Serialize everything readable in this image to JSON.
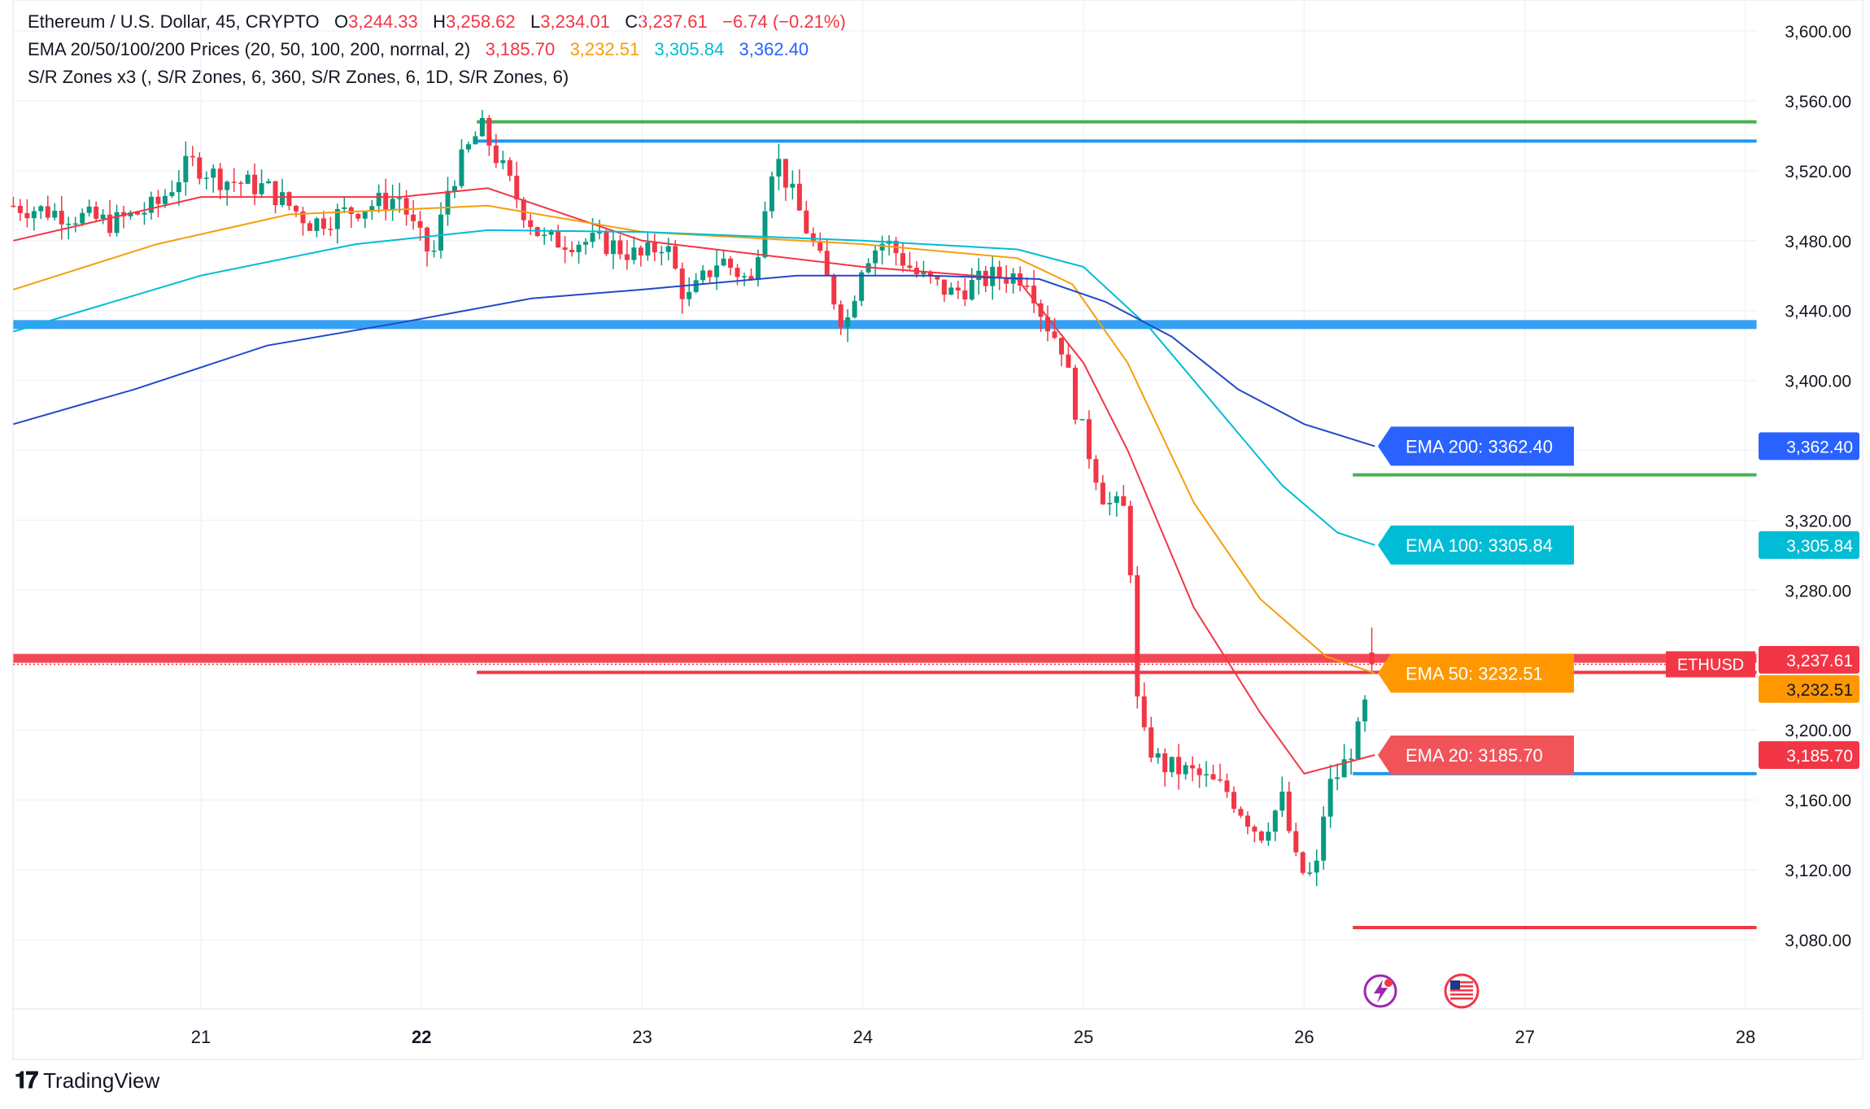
{
  "header": {
    "symbol": "Ethereum / U.S. Dollar, 45, CRYPTO",
    "open_label": "O",
    "open": "3,244.33",
    "high_label": "H",
    "high": "3,258.62",
    "low_label": "L",
    "low": "3,234.01",
    "close_label": "C",
    "close": "3,237.61",
    "change": "−6.74 (−0.21%)",
    "ema_title": "EMA 20/50/100/200 Prices (20, 50, 100, 200, normal, 2)",
    "ema20": "3,185.70",
    "ema50": "3,232.51",
    "ema100": "3,305.84",
    "ema200": "3,362.40",
    "sr_title": "S/R Zones x3 (, S/R Zones, 6, 360, S/R Zones, 6, 1D, S/R Zones, 6)"
  },
  "brand": "TradingView",
  "colors": {
    "up": "#089981",
    "down": "#f23645",
    "ema20": "#f23645",
    "ema50": "#f59e0b",
    "ema100": "#00bcd4",
    "ema200": "#2448c7",
    "sr_green": "#4caf50",
    "sr_blue": "#2196f3",
    "sr_red": "#f23645"
  },
  "chart_data": {
    "type": "candlestick",
    "x_ticks": [
      "21",
      "22",
      "23",
      "24",
      "25",
      "26",
      "27",
      "28"
    ],
    "y_ticks": [
      "3,080.00",
      "3,120.00",
      "3,160.00",
      "3,200.00",
      "3,240.00",
      "3,280.00",
      "3,320.00",
      "3,360.00",
      "3,400.00",
      "3,440.00",
      "3,480.00",
      "3,520.00",
      "3,560.00",
      "3,600.00"
    ],
    "ylim": [
      3058,
      3612
    ],
    "xlim": [
      20.15,
      28.05
    ],
    "ohlc_keypoints": [
      [
        20.15,
        3500
      ],
      [
        20.4,
        3495
      ],
      [
        20.6,
        3490
      ],
      [
        20.8,
        3500
      ],
      [
        20.95,
        3525
      ],
      [
        21.1,
        3515
      ],
      [
        21.3,
        3510
      ],
      [
        21.5,
        3490
      ],
      [
        21.7,
        3498
      ],
      [
        21.9,
        3505
      ],
      [
        21.97,
        3485
      ],
      [
        22.05,
        3470
      ],
      [
        22.12,
        3510
      ],
      [
        22.2,
        3530
      ],
      [
        22.27,
        3545
      ],
      [
        22.35,
        3525
      ],
      [
        22.45,
        3500
      ],
      [
        22.55,
        3480
      ],
      [
        22.7,
        3480
      ],
      [
        22.85,
        3478
      ],
      [
        23.0,
        3470
      ],
      [
        23.1,
        3480
      ],
      [
        23.2,
        3445
      ],
      [
        23.35,
        3470
      ],
      [
        23.5,
        3455
      ],
      [
        23.55,
        3500
      ],
      [
        23.6,
        3530
      ],
      [
        23.7,
        3500
      ],
      [
        23.8,
        3470
      ],
      [
        23.92,
        3430
      ],
      [
        24.0,
        3470
      ],
      [
        24.1,
        3480
      ],
      [
        24.25,
        3460
      ],
      [
        24.4,
        3450
      ],
      [
        24.6,
        3460
      ],
      [
        24.75,
        3460
      ],
      [
        24.82,
        3435
      ],
      [
        24.9,
        3420
      ],
      [
        24.97,
        3380
      ],
      [
        25.1,
        3330
      ],
      [
        25.2,
        3325
      ],
      [
        25.25,
        3200
      ],
      [
        25.35,
        3180
      ],
      [
        25.5,
        3175
      ],
      [
        25.65,
        3165
      ],
      [
        25.8,
        3140
      ],
      [
        25.9,
        3160
      ],
      [
        25.97,
        3120
      ],
      [
        26.05,
        3115
      ],
      [
        26.1,
        3165
      ],
      [
        26.18,
        3180
      ],
      [
        26.25,
        3200
      ],
      [
        26.32,
        3237.61
      ]
    ],
    "ema_series": [
      {
        "name": "EMA 20",
        "last": 3185.7,
        "points": [
          [
            20.15,
            3480
          ],
          [
            21.0,
            3505
          ],
          [
            21.9,
            3505
          ],
          [
            22.3,
            3510
          ],
          [
            23.0,
            3480
          ],
          [
            24.0,
            3465
          ],
          [
            24.7,
            3458
          ],
          [
            25.0,
            3410
          ],
          [
            25.2,
            3360
          ],
          [
            25.5,
            3270
          ],
          [
            25.8,
            3210
          ],
          [
            26.0,
            3175
          ],
          [
            26.32,
            3185.7
          ]
        ]
      },
      {
        "name": "EMA 50",
        "last": 3232.51,
        "points": [
          [
            20.15,
            3452
          ],
          [
            20.8,
            3478
          ],
          [
            21.4,
            3495
          ],
          [
            22.3,
            3500
          ],
          [
            23.0,
            3485
          ],
          [
            24.0,
            3478
          ],
          [
            24.7,
            3470
          ],
          [
            24.95,
            3455
          ],
          [
            25.2,
            3410
          ],
          [
            25.5,
            3330
          ],
          [
            25.8,
            3275
          ],
          [
            26.1,
            3242
          ],
          [
            26.32,
            3232.51
          ]
        ]
      },
      {
        "name": "EMA 100",
        "last": 3305.84,
        "points": [
          [
            20.15,
            3428
          ],
          [
            21.0,
            3460
          ],
          [
            21.7,
            3478
          ],
          [
            22.3,
            3486
          ],
          [
            23.0,
            3485
          ],
          [
            24.0,
            3480
          ],
          [
            24.7,
            3475
          ],
          [
            25.0,
            3465
          ],
          [
            25.3,
            3430
          ],
          [
            25.6,
            3385
          ],
          [
            25.9,
            3340
          ],
          [
            26.15,
            3313
          ],
          [
            26.32,
            3305.84
          ]
        ]
      },
      {
        "name": "EMA 200",
        "last": 3362.4,
        "points": [
          [
            20.15,
            3375
          ],
          [
            20.7,
            3395
          ],
          [
            21.3,
            3420
          ],
          [
            21.9,
            3433
          ],
          [
            22.5,
            3447
          ],
          [
            23.0,
            3452
          ],
          [
            23.7,
            3460
          ],
          [
            24.3,
            3460
          ],
          [
            24.8,
            3458
          ],
          [
            25.1,
            3445
          ],
          [
            25.4,
            3425
          ],
          [
            25.7,
            3395
          ],
          [
            26.0,
            3375
          ],
          [
            26.32,
            3362.4
          ]
        ]
      }
    ],
    "sr_levels": [
      {
        "price": 3548,
        "color": "#4caf50",
        "from": 22.25,
        "to": 28.05
      },
      {
        "price": 3537,
        "color": "#2196f3",
        "from": 22.25,
        "to": 28.05
      },
      {
        "price": 3432,
        "color": "#2196f3",
        "from": 20.15,
        "to": 28.05,
        "thick": true
      },
      {
        "price": 3346,
        "color": "#4caf50",
        "from": 26.22,
        "to": 28.05
      },
      {
        "price": 3241,
        "color": "#f23645",
        "from": 20.15,
        "to": 28.05,
        "thick": true
      },
      {
        "price": 3233,
        "color": "#f23645",
        "from": 22.25,
        "to": 28.05
      },
      {
        "price": 3175,
        "color": "#2196f3",
        "from": 26.22,
        "to": 28.05
      },
      {
        "price": 3087,
        "color": "#f23645",
        "from": 26.22,
        "to": 28.05
      }
    ],
    "callouts": [
      {
        "text": "EMA 200: 3362.40",
        "price": 3362.4,
        "color": "#2962ff"
      },
      {
        "text": "EMA 100: 3305.84",
        "price": 3305.84,
        "color": "#00bcd4"
      },
      {
        "text": "EMA 50: 3232.51",
        "price": 3232.51,
        "color": "#ff9800"
      },
      {
        "text": "EMA 20: 3185.70",
        "price": 3185.7,
        "color": "#f05459"
      }
    ],
    "price_tags": [
      {
        "text": "3,362.40",
        "price": 3362.4,
        "color": "#2962ff"
      },
      {
        "text": "3,305.84",
        "price": 3305.84,
        "color": "#00bcd4"
      },
      {
        "text": "3,237.61",
        "price": 3240.2,
        "color": "#f23645"
      },
      {
        "text": "3,232.51",
        "price": 3223.5,
        "color": "#ff9800"
      },
      {
        "text": "3,185.70",
        "price": 3185.7,
        "color": "#f23645"
      }
    ],
    "symbol_tag": "ETHUSD",
    "events": [
      "lightning-icon",
      "us-flag-icon"
    ]
  }
}
